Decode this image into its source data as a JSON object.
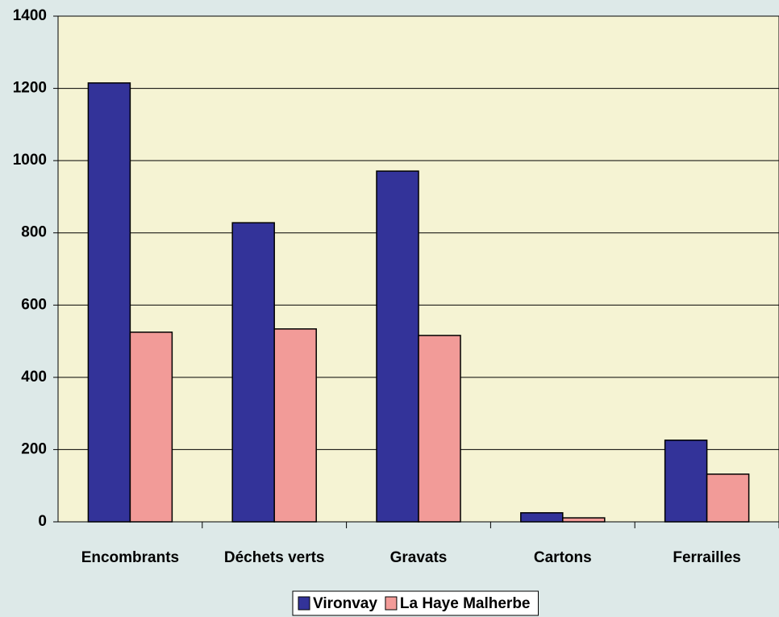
{
  "chart_data": {
    "type": "bar",
    "categories": [
      "Encombrants",
      "Déchets verts",
      "Gravats",
      "Cartons",
      "Ferrailles"
    ],
    "series": [
      {
        "name": "Vironvay",
        "color": "#333399",
        "values": [
          1215,
          828,
          971,
          25,
          226
        ]
      },
      {
        "name": "La Haye Malherbe",
        "color": "#f29b98",
        "values": [
          525,
          534,
          516,
          11,
          132
        ]
      }
    ],
    "ylim": [
      0,
      1400
    ],
    "yticks": [
      0,
      200,
      400,
      600,
      800,
      1000,
      1200,
      1400
    ],
    "grid": true,
    "legend": "bottom"
  }
}
